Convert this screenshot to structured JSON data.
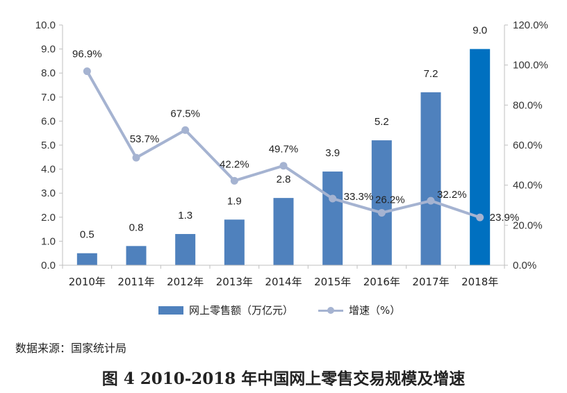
{
  "chart_data": {
    "type": "bar",
    "categories": [
      "2010年",
      "2011年",
      "2012年",
      "2013年",
      "2014年",
      "2015年",
      "2016年",
      "2017年",
      "2018年"
    ],
    "series": [
      {
        "name": "网上零售额（万亿元）",
        "type": "bar",
        "axis": "left",
        "values": [
          0.5,
          0.8,
          1.3,
          1.9,
          2.8,
          3.9,
          5.2,
          7.2,
          9.0
        ],
        "labels": [
          "0.5",
          "0.8",
          "1.3",
          "1.9",
          "2.8",
          "3.9",
          "5.2",
          "7.2",
          "9.0"
        ]
      },
      {
        "name": "增速（%）",
        "type": "line",
        "axis": "right",
        "values": [
          96.9,
          53.7,
          67.5,
          42.2,
          49.7,
          33.3,
          26.2,
          32.2,
          23.9
        ],
        "labels": [
          "96.9%",
          "53.7%",
          "67.5%",
          "42.2%",
          "49.7%",
          "33.3%",
          "26.2%",
          "32.2%",
          "23.9%"
        ]
      }
    ],
    "y_left": {
      "ylim": [
        0,
        10
      ],
      "ticks": [
        "0.0",
        "1.0",
        "2.0",
        "3.0",
        "4.0",
        "5.0",
        "6.0",
        "7.0",
        "8.0",
        "9.0",
        "10.0"
      ]
    },
    "y_right": {
      "ylim": [
        0,
        120
      ],
      "ticks": [
        "0.0%",
        "20.0%",
        "40.0%",
        "60.0%",
        "80.0%",
        "100.0%",
        "120.0%"
      ]
    },
    "colors": {
      "bar": "#4f81bd",
      "bar_highlight": "#0070c0",
      "line": "#a5b3d1",
      "axis": "#bfbfbf"
    },
    "legend_position": "bottom",
    "grid": false
  },
  "legend": {
    "bar_label": "网上零售额（万亿元）",
    "line_label": "增速（%）"
  },
  "source": "数据来源：国家统计局",
  "caption": "图 4 2010-2018 年中国网上零售交易规模及增速"
}
